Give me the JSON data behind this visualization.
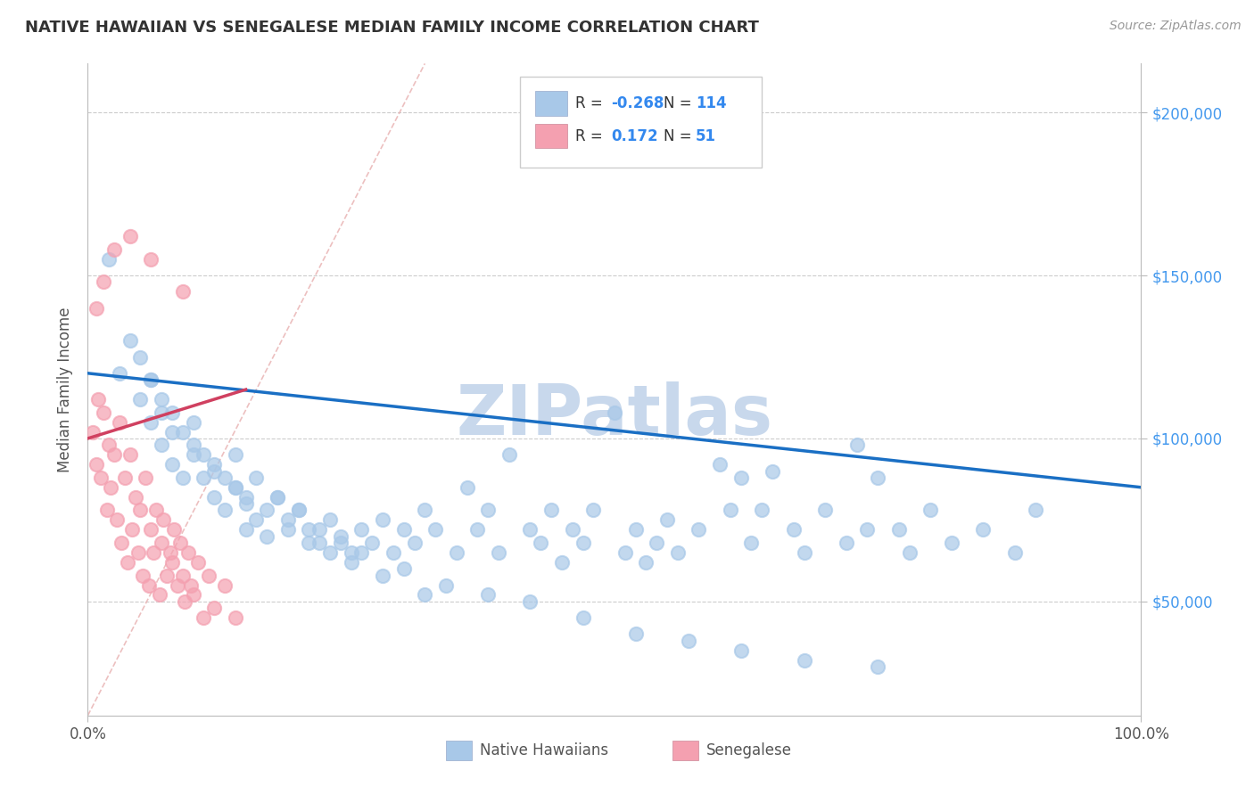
{
  "title": "NATIVE HAWAIIAN VS SENEGALESE MEDIAN FAMILY INCOME CORRELATION CHART",
  "source": "Source: ZipAtlas.com",
  "ylabel": "Median Family Income",
  "yticks": [
    50000,
    100000,
    150000,
    200000
  ],
  "ytick_labels": [
    "$50,000",
    "$100,000",
    "$150,000",
    "$200,000"
  ],
  "xlim": [
    0.0,
    1.0
  ],
  "ylim": [
    15000,
    215000
  ],
  "color_hawaiian": "#a8c8e8",
  "color_senegalese": "#f4a0b0",
  "color_line_hawaiian": "#1a6fc4",
  "color_line_senegalese": "#d04060",
  "color_diagonal": "#e8b0b0",
  "watermark": "ZIPatlas",
  "watermark_color": "#c8d8ec",
  "background_color": "#ffffff",
  "hawaiian_x": [
    0.02,
    0.03,
    0.04,
    0.05,
    0.05,
    0.06,
    0.06,
    0.07,
    0.07,
    0.08,
    0.08,
    0.09,
    0.1,
    0.1,
    0.11,
    0.12,
    0.12,
    0.13,
    0.14,
    0.15,
    0.15,
    0.16,
    0.17,
    0.18,
    0.19,
    0.2,
    0.21,
    0.22,
    0.23,
    0.24,
    0.25,
    0.26,
    0.27,
    0.28,
    0.29,
    0.3,
    0.31,
    0.32,
    0.33,
    0.35,
    0.36,
    0.37,
    0.38,
    0.39,
    0.4,
    0.42,
    0.43,
    0.44,
    0.45,
    0.46,
    0.47,
    0.48,
    0.5,
    0.51,
    0.52,
    0.53,
    0.54,
    0.55,
    0.56,
    0.58,
    0.6,
    0.61,
    0.62,
    0.63,
    0.64,
    0.65,
    0.67,
    0.68,
    0.7,
    0.72,
    0.73,
    0.74,
    0.75,
    0.77,
    0.78,
    0.8,
    0.82,
    0.85,
    0.88,
    0.9,
    0.06,
    0.07,
    0.08,
    0.09,
    0.1,
    0.11,
    0.12,
    0.13,
    0.14,
    0.15,
    0.17,
    0.19,
    0.21,
    0.23,
    0.25,
    0.28,
    0.32,
    0.14,
    0.16,
    0.18,
    0.2,
    0.22,
    0.24,
    0.26,
    0.3,
    0.34,
    0.38,
    0.42,
    0.47,
    0.52,
    0.57,
    0.62,
    0.68,
    0.75
  ],
  "hawaiian_y": [
    155000,
    120000,
    130000,
    112000,
    125000,
    105000,
    118000,
    98000,
    108000,
    92000,
    102000,
    88000,
    95000,
    105000,
    88000,
    82000,
    92000,
    78000,
    85000,
    72000,
    80000,
    75000,
    70000,
    82000,
    75000,
    78000,
    72000,
    68000,
    75000,
    70000,
    65000,
    72000,
    68000,
    75000,
    65000,
    72000,
    68000,
    78000,
    72000,
    65000,
    85000,
    72000,
    78000,
    65000,
    95000,
    72000,
    68000,
    78000,
    62000,
    72000,
    68000,
    78000,
    108000,
    65000,
    72000,
    62000,
    68000,
    75000,
    65000,
    72000,
    92000,
    78000,
    88000,
    68000,
    78000,
    90000,
    72000,
    65000,
    78000,
    68000,
    98000,
    72000,
    88000,
    72000,
    65000,
    78000,
    68000,
    72000,
    65000,
    78000,
    118000,
    112000,
    108000,
    102000,
    98000,
    95000,
    90000,
    88000,
    85000,
    82000,
    78000,
    72000,
    68000,
    65000,
    62000,
    58000,
    52000,
    95000,
    88000,
    82000,
    78000,
    72000,
    68000,
    65000,
    60000,
    55000,
    52000,
    50000,
    45000,
    40000,
    38000,
    35000,
    32000,
    30000
  ],
  "senegalese_x": [
    0.005,
    0.008,
    0.01,
    0.012,
    0.015,
    0.018,
    0.02,
    0.022,
    0.025,
    0.028,
    0.03,
    0.032,
    0.035,
    0.038,
    0.04,
    0.042,
    0.045,
    0.048,
    0.05,
    0.052,
    0.055,
    0.058,
    0.06,
    0.062,
    0.065,
    0.068,
    0.07,
    0.072,
    0.075,
    0.078,
    0.08,
    0.082,
    0.085,
    0.088,
    0.09,
    0.092,
    0.095,
    0.098,
    0.1,
    0.105,
    0.11,
    0.115,
    0.12,
    0.13,
    0.14,
    0.008,
    0.015,
    0.025,
    0.04,
    0.06,
    0.09
  ],
  "senegalese_y": [
    102000,
    92000,
    112000,
    88000,
    108000,
    78000,
    98000,
    85000,
    95000,
    75000,
    105000,
    68000,
    88000,
    62000,
    95000,
    72000,
    82000,
    65000,
    78000,
    58000,
    88000,
    55000,
    72000,
    65000,
    78000,
    52000,
    68000,
    75000,
    58000,
    65000,
    62000,
    72000,
    55000,
    68000,
    58000,
    50000,
    65000,
    55000,
    52000,
    62000,
    45000,
    58000,
    48000,
    55000,
    45000,
    140000,
    148000,
    158000,
    162000,
    155000,
    145000
  ]
}
